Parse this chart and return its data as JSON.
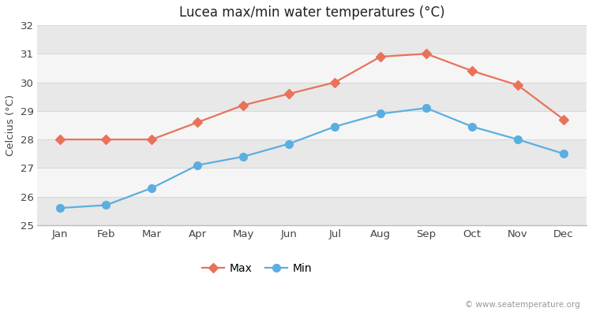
{
  "title": "Lucea max/min water temperatures (°C)",
  "ylabel": "Celcius (°C)",
  "months": [
    "Jan",
    "Feb",
    "Mar",
    "Apr",
    "May",
    "Jun",
    "Jul",
    "Aug",
    "Sep",
    "Oct",
    "Nov",
    "Dec"
  ],
  "max_temps": [
    28.0,
    28.0,
    28.0,
    28.6,
    29.2,
    29.6,
    30.0,
    30.9,
    31.0,
    30.4,
    29.9,
    28.7
  ],
  "min_temps": [
    25.6,
    25.7,
    26.3,
    27.1,
    27.4,
    27.85,
    28.45,
    28.9,
    29.1,
    28.45,
    28.0,
    27.5
  ],
  "max_color": "#e8725a",
  "min_color": "#5aafe0",
  "outer_bg_color": "#ffffff",
  "band_light": "#f5f5f5",
  "band_dark": "#e8e8e8",
  "grid_color": "#d8d8d8",
  "ylim": [
    25,
    32
  ],
  "yticks": [
    25,
    26,
    27,
    28,
    29,
    30,
    31,
    32
  ],
  "watermark": "© www.seatemperature.org",
  "legend_max": "Max",
  "legend_min": "Min",
  "linewidth": 1.6,
  "markersize_max": 6,
  "markersize_min": 7
}
